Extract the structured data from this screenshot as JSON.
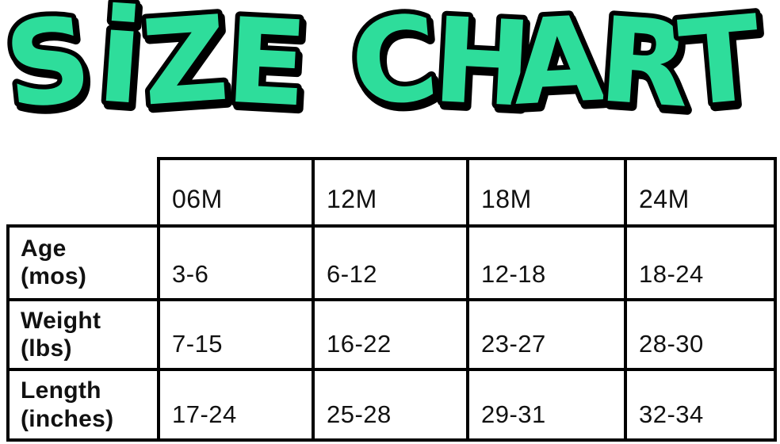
{
  "page": {
    "background_color": "#ffffff",
    "text_color": "#111111"
  },
  "title": {
    "text": "SIZE CHART",
    "fill_color": "#2EDD9B",
    "outline_color": "#000000",
    "letters": [
      "S",
      "i",
      "Z",
      "E",
      "C",
      "H",
      "A",
      "R",
      "T"
    ]
  },
  "table": {
    "border_color": "#000000",
    "column_headers": [
      "06M",
      "12M",
      "18M",
      "24M"
    ],
    "rows": [
      {
        "label_line1": "Age",
        "label_line2": "(mos)",
        "values": [
          "3-6",
          "6-12",
          "12-18",
          "18-24"
        ]
      },
      {
        "label_line1": "Weight",
        "label_line2": "(lbs)",
        "values": [
          "7-15",
          "16-22",
          "23-27",
          "28-30"
        ]
      },
      {
        "label_line1": "Length",
        "label_line2": "(inches)",
        "values": [
          "17-24",
          "25-28",
          "29-31",
          "32-34"
        ]
      }
    ]
  },
  "chart_data": {
    "type": "table",
    "title": "SIZE CHART",
    "columns": [
      "06M",
      "12M",
      "18M",
      "24M"
    ],
    "row_labels": [
      "Age (mos)",
      "Weight (lbs)",
      "Length (inches)"
    ],
    "cells": [
      [
        "3-6",
        "6-12",
        "12-18",
        "18-24"
      ],
      [
        "7-15",
        "16-22",
        "23-27",
        "28-30"
      ],
      [
        "17-24",
        "25-28",
        "29-31",
        "32-34"
      ]
    ]
  }
}
